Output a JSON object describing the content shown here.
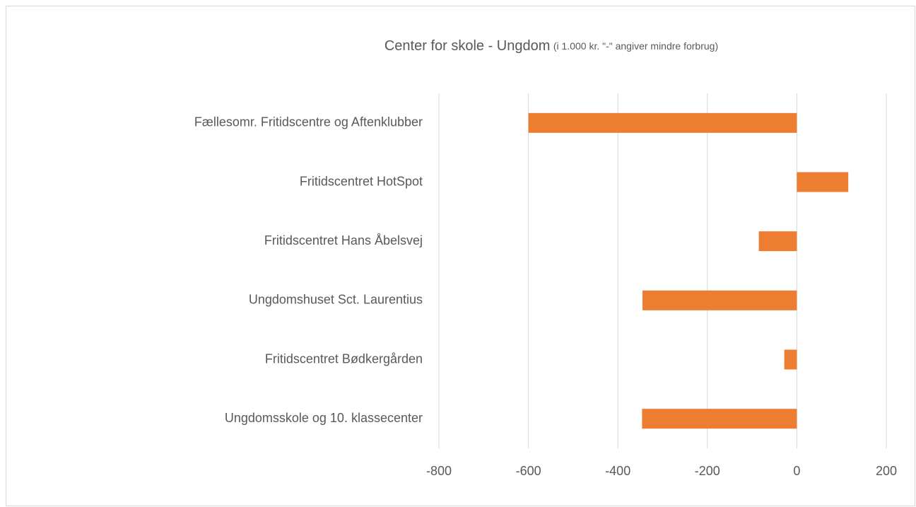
{
  "chart_data": {
    "type": "bar",
    "orientation": "horizontal",
    "title": "Center for skole - Ungdom",
    "subtitle": "(i 1.000 kr. \"-\" angiver mindre forbrug)",
    "categories": [
      "Fællesomr. Fritidscentre og Aftenklubber",
      "Fritidscentret HotSpot",
      "Fritidscentret Hans Åbelsvej",
      "Ungdomshuset Sct. Laurentius",
      "Fritidscentret Bødkergården",
      "Ungdomsskole og 10. klassecenter"
    ],
    "values": [
      -600,
      115,
      -85,
      -345,
      -28,
      -346
    ],
    "color": "#ed7d31",
    "xlim": [
      -800,
      200
    ],
    "xticks": [
      -800,
      -600,
      -400,
      -200,
      0,
      200
    ],
    "grid": true
  }
}
